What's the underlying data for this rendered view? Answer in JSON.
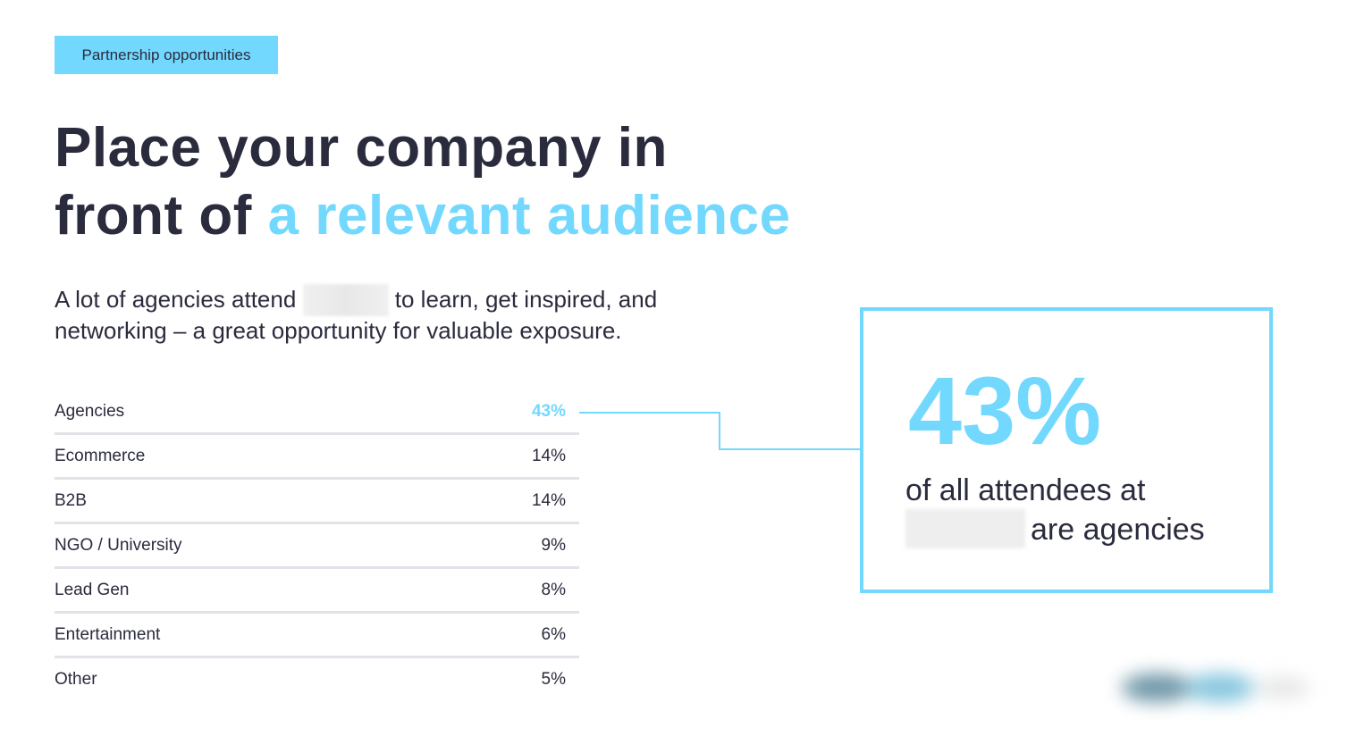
{
  "tag": "Partnership opportunities",
  "title": {
    "line1": "Place your company in",
    "line2_plain": "front of ",
    "line2_accent": "a relevant audience"
  },
  "intro": {
    "before": "A lot of agencies attend ",
    "after": " to learn, get inspired, and networking – a great opportunity for valuable exposure."
  },
  "table": [
    {
      "label": "Agencies",
      "value": "43%"
    },
    {
      "label": "Ecommerce",
      "value": "14%"
    },
    {
      "label": "B2B",
      "value": "14%"
    },
    {
      "label": "NGO / University",
      "value": "9%"
    },
    {
      "label": "Lead Gen",
      "value": "8%"
    },
    {
      "label": "Entertainment",
      "value": "6%"
    },
    {
      "label": "Other",
      "value": "5%"
    }
  ],
  "highlight": {
    "value": "43%",
    "line1": "of all attendees at",
    "line2": "are agencies"
  },
  "colors": {
    "accent": "#72d8fe",
    "text": "#2a2b3d"
  }
}
